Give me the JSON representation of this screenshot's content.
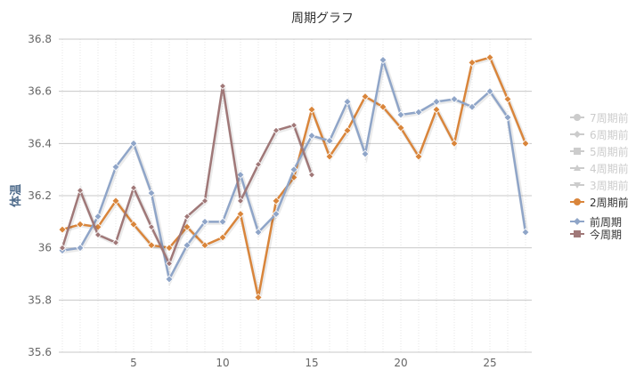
{
  "chart_data": {
    "type": "line",
    "title": "周期グラフ",
    "xlabel": "",
    "ylabel": "体温",
    "ylim": [
      35.6,
      36.8
    ],
    "yticks": [
      "35.6",
      "35.8",
      "36",
      "36.2",
      "36.4",
      "36.6",
      "36.8"
    ],
    "xticks": [
      "5",
      "10",
      "15",
      "20",
      "25"
    ],
    "xlim": [
      1,
      27
    ],
    "grid": true,
    "legend_position": "right",
    "legend": [
      {
        "name": "7周期前",
        "color": "#cccccc",
        "active": false,
        "marker": "circle"
      },
      {
        "name": "6周期前",
        "color": "#cccccc",
        "active": false,
        "marker": "diamond"
      },
      {
        "name": "5周期前",
        "color": "#cccccc",
        "active": false,
        "marker": "square"
      },
      {
        "name": "4周期前",
        "color": "#cccccc",
        "active": false,
        "marker": "triangle"
      },
      {
        "name": "3周期前",
        "color": "#cccccc",
        "active": false,
        "marker": "triangle-down"
      },
      {
        "name": "2周期前",
        "color": "#d9853b",
        "active": true,
        "marker": "circle"
      },
      {
        "name": "前周期",
        "color": "#8fa5c8",
        "active": true,
        "marker": "diamond"
      },
      {
        "name": "今周期",
        "color": "#a07878",
        "active": true,
        "marker": "square"
      }
    ],
    "series": [
      {
        "name": "2周期前",
        "color": "#d9853b",
        "values": [
          36.07,
          36.09,
          36.08,
          36.18,
          36.09,
          36.01,
          36.0,
          36.08,
          36.01,
          36.04,
          36.13,
          35.81,
          36.18,
          36.27,
          36.53,
          36.35,
          36.45,
          36.58,
          36.54,
          36.46,
          36.35,
          36.53,
          36.4,
          36.71,
          36.73,
          36.57,
          36.4
        ]
      },
      {
        "name": "前周期",
        "color": "#8fa5c8",
        "values": [
          35.99,
          36.0,
          36.12,
          36.31,
          36.4,
          36.21,
          35.88,
          36.01,
          36.1,
          36.1,
          36.28,
          36.06,
          36.13,
          36.3,
          36.43,
          36.41,
          36.56,
          36.36,
          36.72,
          36.51,
          36.52,
          36.56,
          36.57,
          36.54,
          36.6,
          36.5,
          36.06
        ]
      },
      {
        "name": "今周期",
        "color": "#a07878",
        "values": [
          36.0,
          36.22,
          36.05,
          36.02,
          36.23,
          36.08,
          35.94,
          36.12,
          36.18,
          36.62,
          36.18,
          36.32,
          36.45,
          36.47,
          36.28
        ]
      }
    ]
  }
}
